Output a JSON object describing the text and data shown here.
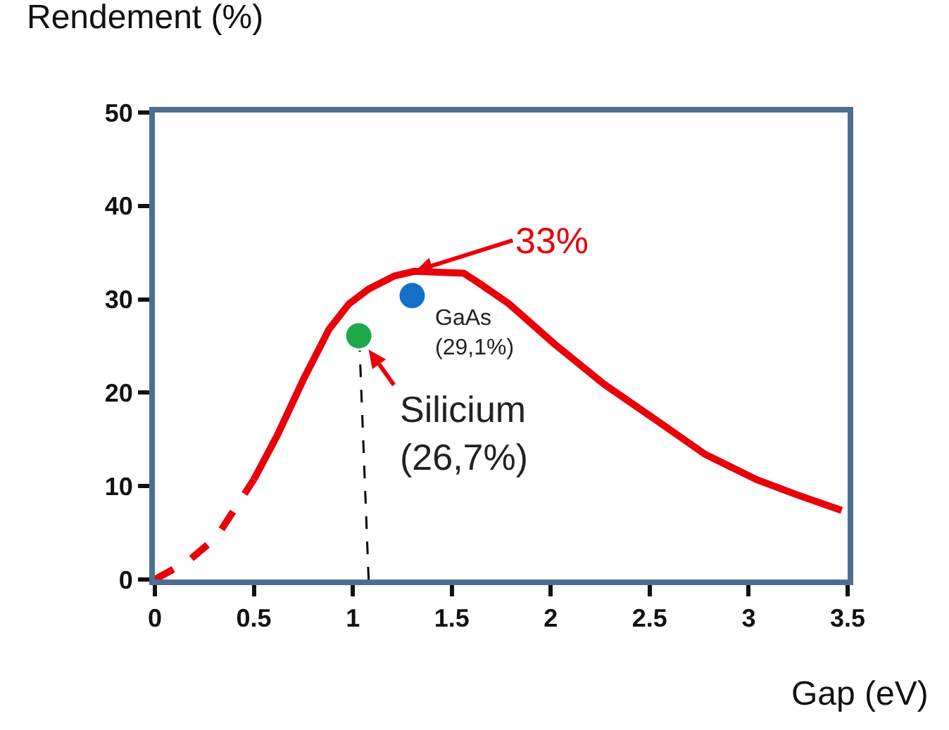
{
  "chart_data": {
    "type": "line",
    "xlabel": "Gap (eV)",
    "ylabel": "Rendement (%)",
    "xlim": [
      0,
      3.5
    ],
    "xticks": [
      0,
      0.5,
      1,
      1.5,
      2,
      2.5,
      3,
      3.5
    ],
    "ylim": [
      0,
      50
    ],
    "yticks": [
      0,
      10,
      20,
      30,
      40,
      50
    ],
    "grid": false,
    "series": [
      {
        "color": "#e8000b",
        "line_style": "dashed",
        "x": [
          0,
          0.17,
          0.31,
          0.5
        ],
        "values": [
          0,
          2.0,
          4.5,
          10.7
        ]
      },
      {
        "color": "#e8000b",
        "line_style": "solid",
        "x": [
          0.5,
          0.62,
          0.75,
          0.88,
          0.98,
          1.08,
          1.21,
          1.31,
          1.56,
          1.64,
          1.79,
          2.02,
          2.27,
          2.53,
          2.78,
          3.04,
          3.24,
          3.47
        ],
        "values": [
          10.7,
          15.5,
          21.4,
          26.8,
          29.5,
          31.1,
          32.5,
          33.0,
          32.8,
          31.7,
          29.5,
          25.2,
          20.9,
          17.1,
          13.4,
          10.7,
          9.1,
          7.4
        ]
      },
      {
        "color": "#000000",
        "line_style": "dashed",
        "x": [
          1.08,
          1.035
        ],
        "values": [
          0,
          24.5
        ]
      },
      {
        "type": "scatter",
        "color": "#1fa84a",
        "marker": "circle",
        "x": [
          1.03
        ],
        "values": [
          26.1
        ]
      },
      {
        "type": "scatter",
        "color": "#1570c8",
        "marker": "circle",
        "x": [
          1.3
        ],
        "values": [
          30.4
        ]
      }
    ],
    "annotations": [
      {
        "text": "33%",
        "x": 1.31,
        "y": 33.0
      },
      {
        "text": "GaAs\n(29,1%)",
        "x": 1.3,
        "y": 30.4
      },
      {
        "text": "Silicium\n(26,7%)",
        "x": 1.03,
        "y": 26.1
      }
    ]
  }
}
